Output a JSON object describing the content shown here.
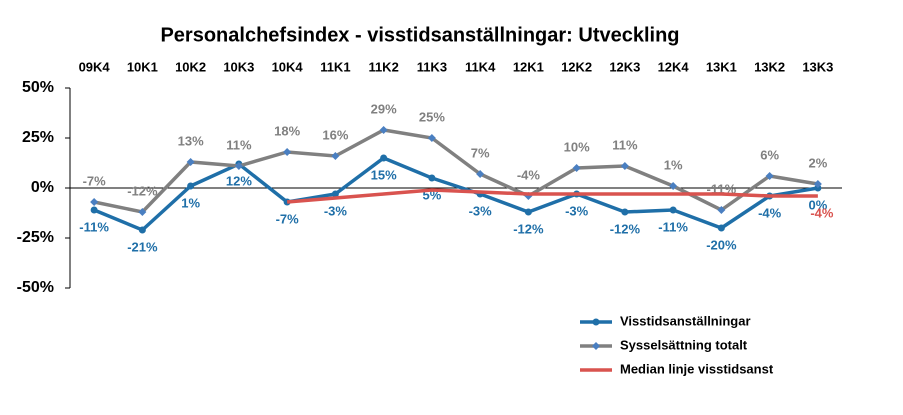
{
  "chart_data": {
    "type": "line",
    "title": "Personalchefsindex - visstidsanställningar: Utveckling",
    "categories": [
      "09K4",
      "10K1",
      "10K2",
      "10K3",
      "10K4",
      "11K1",
      "11K2",
      "11K3",
      "11K4",
      "12K1",
      "12K2",
      "12K3",
      "12K4",
      "13K1",
      "13K2",
      "13K3"
    ],
    "series": [
      {
        "name": "Visstidsanställningar",
        "color": "#1f6fa8",
        "marker": "circle",
        "values": [
          -11,
          -21,
          1,
          12,
          -7,
          -3,
          15,
          5,
          -3,
          -12,
          -3,
          -12,
          -11,
          -20,
          -4,
          0
        ],
        "value_labels": [
          "-11%",
          "-21%",
          "1%",
          "12%",
          "-7%",
          "-3%",
          "15%",
          "5%",
          "-3%",
          "-12%",
          "-3%",
          "-12%",
          "-11%",
          "-20%",
          "-4%",
          "0%"
        ]
      },
      {
        "name": "Sysselsättning totalt",
        "color": "#808080",
        "marker": "diamond",
        "values": [
          -7,
          -12,
          13,
          11,
          18,
          16,
          29,
          25,
          7,
          -4,
          10,
          11,
          1,
          -11,
          6,
          2
        ],
        "value_labels": [
          "-7%",
          "-12%",
          "13%",
          "11%",
          "18%",
          "16%",
          "29%",
          "25%",
          "7%",
          "-4%",
          "10%",
          "11%",
          "1%",
          "-11%",
          "6%",
          "2%"
        ]
      },
      {
        "name": "Median linje visstidsanst",
        "color": "#d9534f",
        "marker": "none",
        "values": [
          null,
          null,
          null,
          null,
          -7,
          -5,
          -3,
          -1,
          -2,
          -3,
          -3,
          -3,
          -3,
          -3,
          -4,
          -4
        ],
        "value_labels": [
          null,
          null,
          null,
          null,
          null,
          null,
          null,
          null,
          null,
          null,
          null,
          null,
          null,
          null,
          null,
          "-4%"
        ]
      }
    ],
    "ylim": [
      -50,
      50
    ],
    "yticks": [
      {
        "value": -50,
        "label": "-50%"
      },
      {
        "value": -25,
        "label": "-25%"
      },
      {
        "value": 0,
        "label": "0%"
      },
      {
        "value": 25,
        "label": "25%"
      },
      {
        "value": 50,
        "label": "50%"
      }
    ],
    "legend": "bottom-right"
  }
}
